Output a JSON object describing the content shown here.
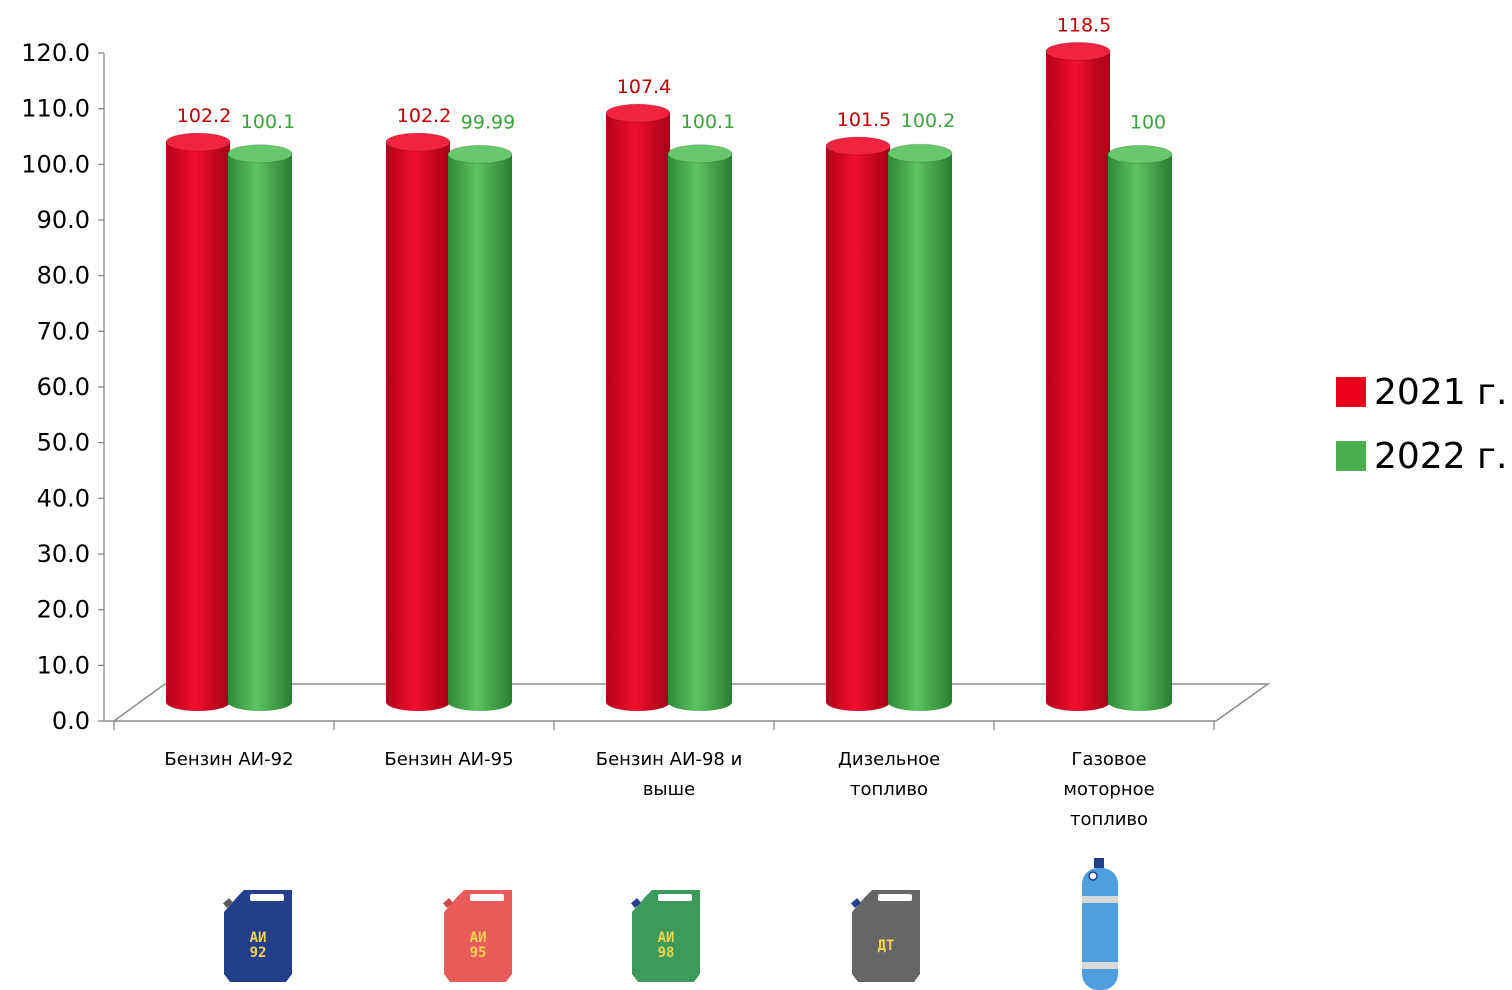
{
  "chart_data": {
    "type": "bar",
    "categories": [
      "Бензин АИ-92",
      "Бензин АИ-95",
      "Бензин АИ-98 и выше",
      "Дизельное топливо",
      "Газовое моторное топливо"
    ],
    "category_lines": [
      [
        "Бензин АИ-92"
      ],
      [
        "Бензин АИ-95"
      ],
      [
        "Бензин АИ-98 и",
        "выше"
      ],
      [
        "Дизельное",
        "топливо"
      ],
      [
        "Газовое",
        "моторное",
        "топливо"
      ]
    ],
    "series": [
      {
        "name": "2021 г.",
        "color": "#e8001c",
        "label_color": "#c00000",
        "values": [
          102.2,
          102.2,
          107.4,
          101.5,
          118.5
        ],
        "labels": [
          "102.2",
          "102.2",
          "107.4",
          "101.5",
          "118.5"
        ]
      },
      {
        "name": "2022 г.",
        "color": "#4caf50",
        "label_color": "#3aa43a",
        "values": [
          100.1,
          99.99,
          100.1,
          100.2,
          100
        ],
        "labels": [
          "100.1",
          "99.99",
          "100.1",
          "100.2",
          "100"
        ]
      }
    ],
    "ylim": [
      0,
      120
    ],
    "yticks": [
      "0.0",
      "10.0",
      "20.0",
      "30.0",
      "40.0",
      "50.0",
      "60.0",
      "70.0",
      "80.0",
      "90.0",
      "100.0",
      "110.0",
      "120.0"
    ],
    "legend_position": "right",
    "style": "3d-cylinder"
  },
  "icons": [
    {
      "name": "jerrycan-ai92-icon",
      "text": [
        "АИ",
        "92"
      ],
      "color": "#233f8c"
    },
    {
      "name": "jerrycan-ai95-icon",
      "text": [
        "АИ",
        "95"
      ],
      "color": "#e85c5c"
    },
    {
      "name": "jerrycan-ai98-icon",
      "text": [
        "АИ",
        "98"
      ],
      "color": "#3c9a5a"
    },
    {
      "name": "jerrycan-dt-icon",
      "text": [
        "ДТ"
      ],
      "color": "#666666"
    },
    {
      "name": "gas-cylinder-icon",
      "text": [],
      "color": "#4f9fe0"
    }
  ]
}
